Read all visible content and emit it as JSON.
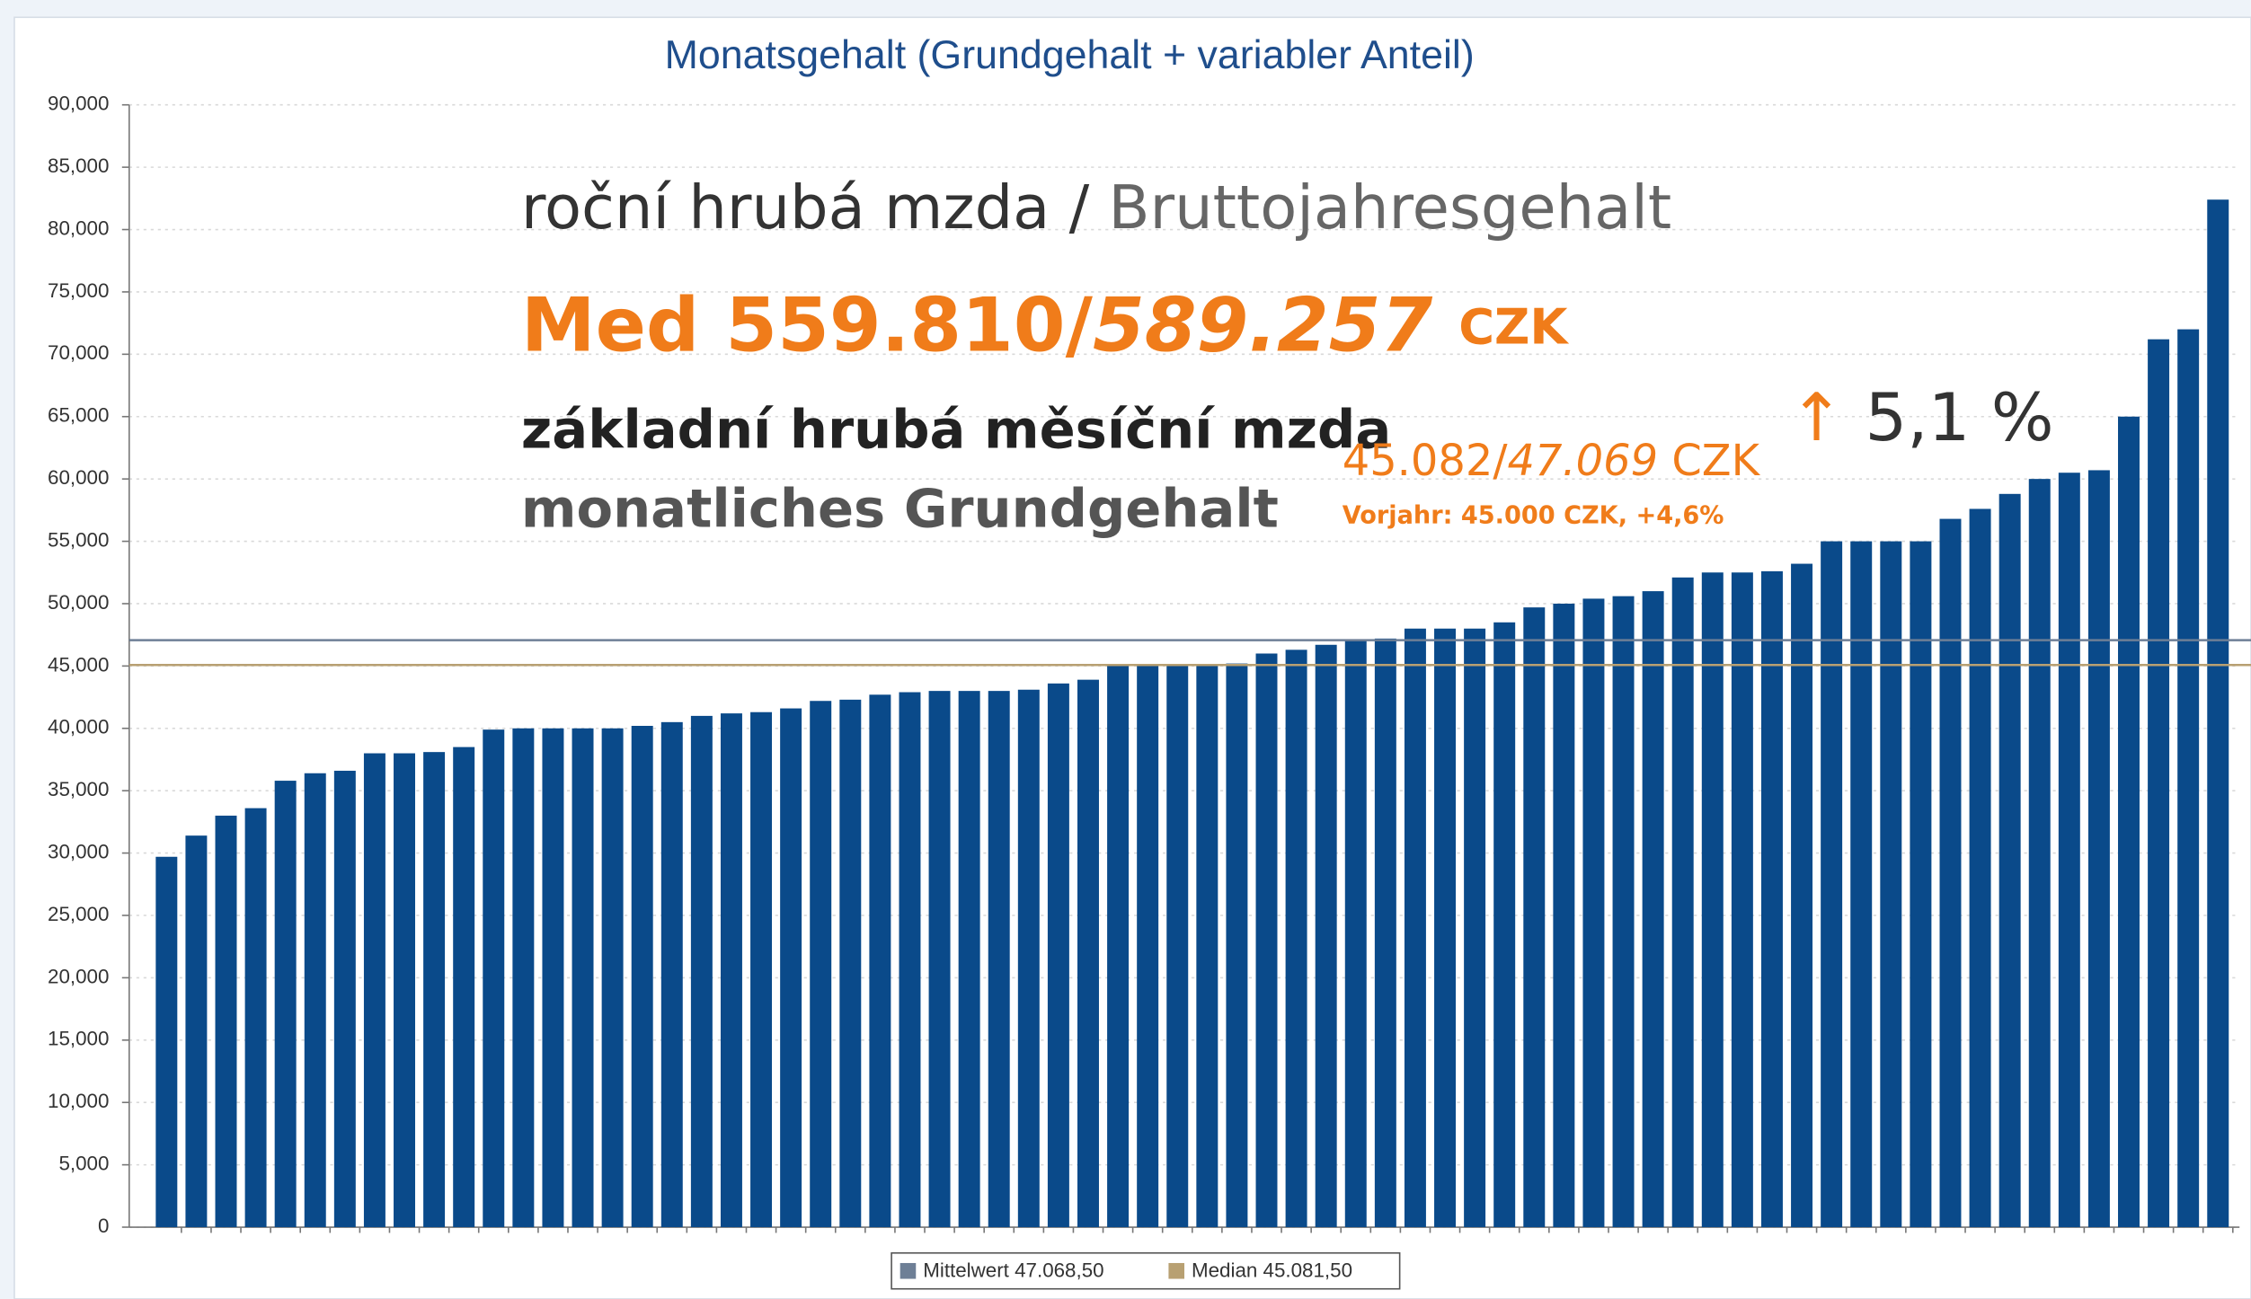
{
  "chart_data": {
    "type": "bar",
    "title": "Monatsgehalt (Grundgehalt + variabler Anteil)",
    "color": "#0a4a8a",
    "values": [
      29700,
      31400,
      33000,
      33600,
      35800,
      36400,
      36600,
      38000,
      38000,
      38100,
      38500,
      39900,
      40000,
      40000,
      40000,
      40000,
      40200,
      40500,
      41000,
      41200,
      41300,
      41600,
      42200,
      42300,
      42700,
      42900,
      43000,
      43000,
      43000,
      43100,
      43600,
      43900,
      45000,
      45000,
      45000,
      45100,
      45200,
      46000,
      46300,
      46700,
      47100,
      47200,
      48000,
      48000,
      48000,
      48500,
      49700,
      50000,
      50400,
      50600,
      51000,
      52100,
      52500,
      52500,
      52600,
      53200,
      55000,
      55000,
      55000,
      55000,
      56800,
      57600,
      58800,
      60000,
      60500,
      60700,
      65000,
      71200,
      72000,
      82400
    ],
    "ylim": [
      0,
      90000
    ],
    "yticks": [
      0,
      {
        "value": 5000,
        "label": "5,000"
      },
      {
        "value": 10000,
        "label": "10,000"
      },
      {
        "value": 15000,
        "label": "15,000"
      },
      {
        "value": 20000,
        "label": "20,000"
      },
      {
        "value": 25000,
        "label": "25,000"
      },
      {
        "value": 30000,
        "label": "30,000"
      },
      {
        "value": 35000,
        "label": "35,000"
      },
      {
        "value": 40000,
        "label": "40,000"
      },
      {
        "value": 45000,
        "label": "45,000"
      },
      {
        "value": 50000,
        "label": "50,000"
      },
      {
        "value": 55000,
        "label": "55,000"
      },
      {
        "value": 60000,
        "label": "60,000"
      },
      {
        "value": 65000,
        "label": "65,000"
      },
      {
        "value": 70000,
        "label": "70,000"
      },
      {
        "value": 75000,
        "label": "75,000"
      },
      {
        "value": 80000,
        "label": "80,000"
      },
      {
        "value": 85000,
        "label": "85,000"
      },
      {
        "value": 90000,
        "label": "90,000"
      }
    ],
    "grid": true,
    "reference_lines": [
      {
        "name": "Mittelwert 47.068,50",
        "value": 47068.5,
        "color": "#6e7f96"
      },
      {
        "name": "Median 45.081,50",
        "value": 45081.5,
        "color": "#b8a072"
      }
    ],
    "annotations": {
      "line1": [
        "roční hrubá mzda /",
        "Bruttojahresgehalt"
      ],
      "line2": [
        "Med 559.810/",
        "589.257",
        "CZK"
      ],
      "line3": "základní hrubá měsíční mzda",
      "line4": "monatliches Grundgehalt",
      "line5": [
        "45.082/",
        "47.069",
        "CZK"
      ],
      "line6": "Vorjahr: 45.000 CZK, +4,6%",
      "line7": [
        "↑",
        "5,1 %"
      ]
    }
  }
}
